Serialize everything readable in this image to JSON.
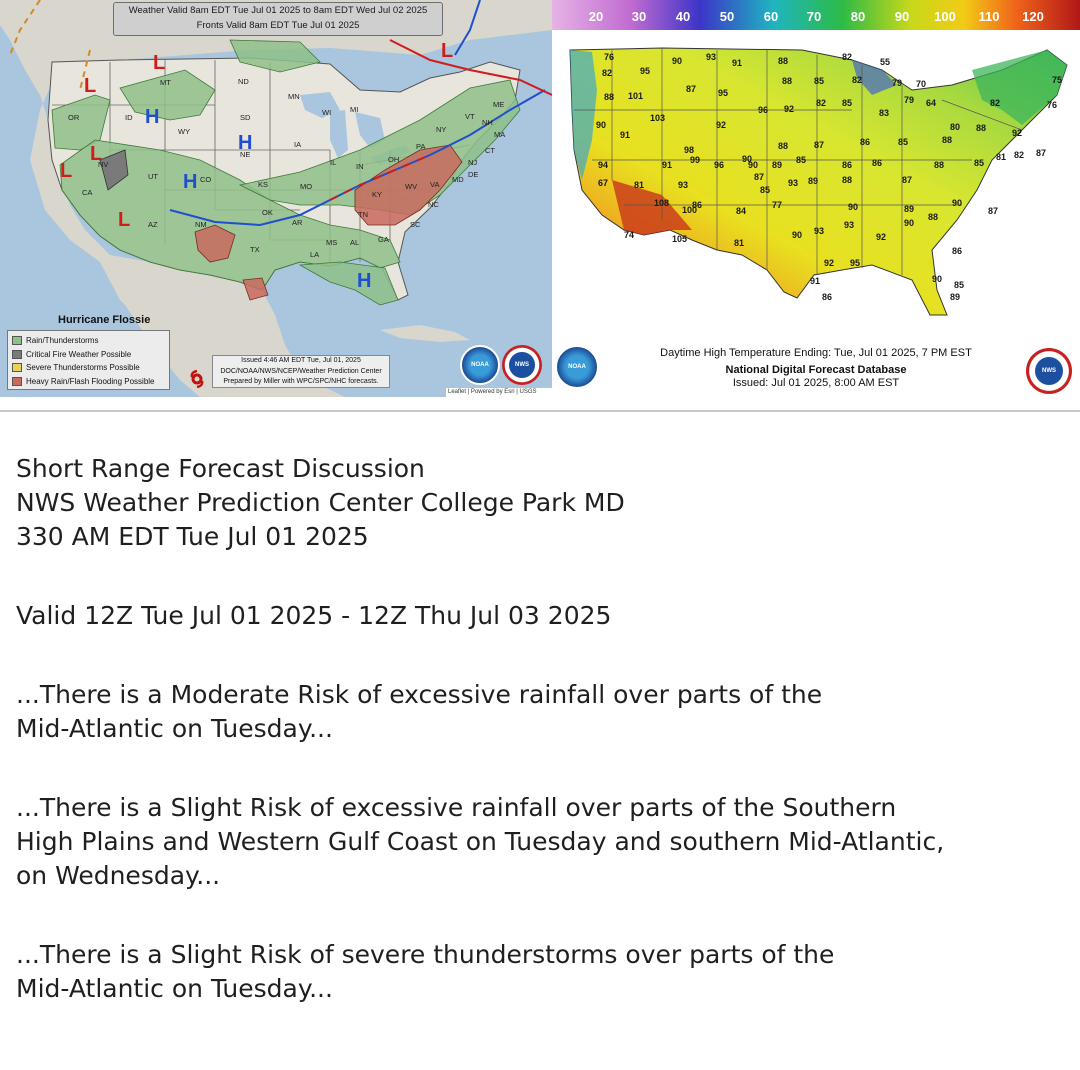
{
  "left_map": {
    "valid_line_1": "Weather Valid 8am EDT Tue Jul 01 2025 to 8am EDT Wed Jul 02 2025",
    "valid_line_2": "Fronts Valid 8am EDT Tue Jul 01 2025",
    "hurricane_label": "Hurricane Flossie",
    "legend": [
      {
        "label": "Rain/Thunderstorms",
        "color": "#8fc08a"
      },
      {
        "label": "Critical Fire Weather Possible",
        "color": "#7a7a7a"
      },
      {
        "label": "Severe Thunderstorms Possible",
        "color": "#e8d35a"
      },
      {
        "label": "Heavy Rain/Flash Flooding Possible",
        "color": "#c96a5e"
      }
    ],
    "issued_line_1": "Issued  4:46 AM EDT  Tue, Jul 01, 2025",
    "issued_line_2": "DOC/NOAA/NWS/NCEP/Weather Prediction Center",
    "issued_line_3": "Prepared by Miller with WPC/SPC/NHC forecasts.",
    "attribution": "Leaflet | Powered by Esri | USGS",
    "state_labels": [
      "OR",
      "ID",
      "MT",
      "WY",
      "ND",
      "SD",
      "MN",
      "WI",
      "MI",
      "IA",
      "IL",
      "IN",
      "OH",
      "PA",
      "NY",
      "ME",
      "VT",
      "NH",
      "MA",
      "CT",
      "NJ",
      "DE",
      "MD",
      "VA",
      "WV",
      "KY",
      "TN",
      "NC",
      "SC",
      "GA",
      "AL",
      "MS",
      "LA",
      "AR",
      "MO",
      "KS",
      "NE",
      "CO",
      "UT",
      "NV",
      "CA",
      "AZ",
      "NM",
      "TX",
      "OK"
    ],
    "pressure_high": "H",
    "pressure_low": "L",
    "hurricane_icon": "hurricane-icon",
    "logos": [
      "NOAA",
      "NWS",
      "NOAA"
    ]
  },
  "right_map": {
    "scale_ticks": [
      "20",
      "30",
      "40",
      "50",
      "60",
      "70",
      "80",
      "90",
      "100",
      "110",
      "120"
    ],
    "footer_line_1": "Daytime High Temperature Ending: Tue, Jul 01 2025, 7 PM EST",
    "footer_line_2": "National Digital Forecast Database",
    "footer_line_3": "Issued: Jul 01 2025, 8:00 AM EST",
    "logo": "NWS",
    "temps": [
      "76",
      "82",
      "95",
      "90",
      "93",
      "91",
      "88",
      "82",
      "55",
      "79",
      "70",
      "75",
      "88",
      "101",
      "87",
      "95",
      "88",
      "85",
      "82",
      "79",
      "64",
      "82",
      "76",
      "90",
      "103",
      "92",
      "96",
      "92",
      "82",
      "85",
      "83",
      "80",
      "88",
      "92",
      "91",
      "98",
      "88",
      "87",
      "86",
      "85",
      "88",
      "85",
      "81",
      "82",
      "87",
      "99",
      "96",
      "90",
      "89",
      "85",
      "86",
      "86",
      "88",
      "94",
      "91",
      "90",
      "87",
      "93",
      "67",
      "81",
      "93",
      "85",
      "89",
      "88",
      "87",
      "90",
      "87",
      "100",
      "108",
      "86",
      "84",
      "77",
      "90",
      "89",
      "88",
      "74",
      "105",
      "81",
      "90",
      "93",
      "93",
      "92",
      "90",
      "86",
      "92",
      "95",
      "91",
      "90",
      "85",
      "86",
      "89"
    ]
  },
  "discussion": {
    "line_1": "Short Range Forecast Discussion",
    "line_2": "NWS Weather Prediction Center College Park MD",
    "line_3": "330 AM EDT Tue Jul 01 2025",
    "valid": "Valid 12Z Tue Jul 01 2025 - 12Z Thu Jul 03 2025",
    "para_1_line_1": "...There is a Moderate Risk of excessive rainfall over parts of the",
    "para_1_line_2": "Mid-Atlantic on Tuesday...",
    "para_2_line_1": "...There is a Slight Risk of excessive rainfall over parts of the Southern",
    "para_2_line_2": "High Plains and Western Gulf Coast on Tuesday and southern Mid-Atlantic,",
    "para_2_line_3": "on Wednesday...",
    "para_3_line_1": "...There is a Slight Risk of severe thunderstorms over parts of the",
    "para_3_line_2": "Mid-Atlantic on Tuesday..."
  }
}
